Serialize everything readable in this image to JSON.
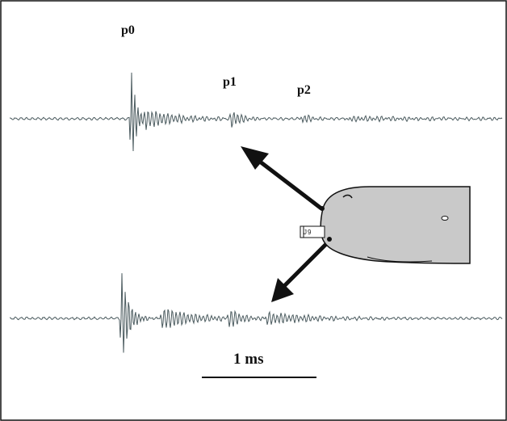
{
  "labels": {
    "pulse0": "p0",
    "pulse1": "p1",
    "pulse2": "p2",
    "scale_bar": "1 ms",
    "tag": "J9"
  },
  "colors": {
    "trace": "#4a5a5e",
    "whale_fill": "#c9c9c9",
    "outline": "#111111",
    "background": "#ffffff"
  }
}
